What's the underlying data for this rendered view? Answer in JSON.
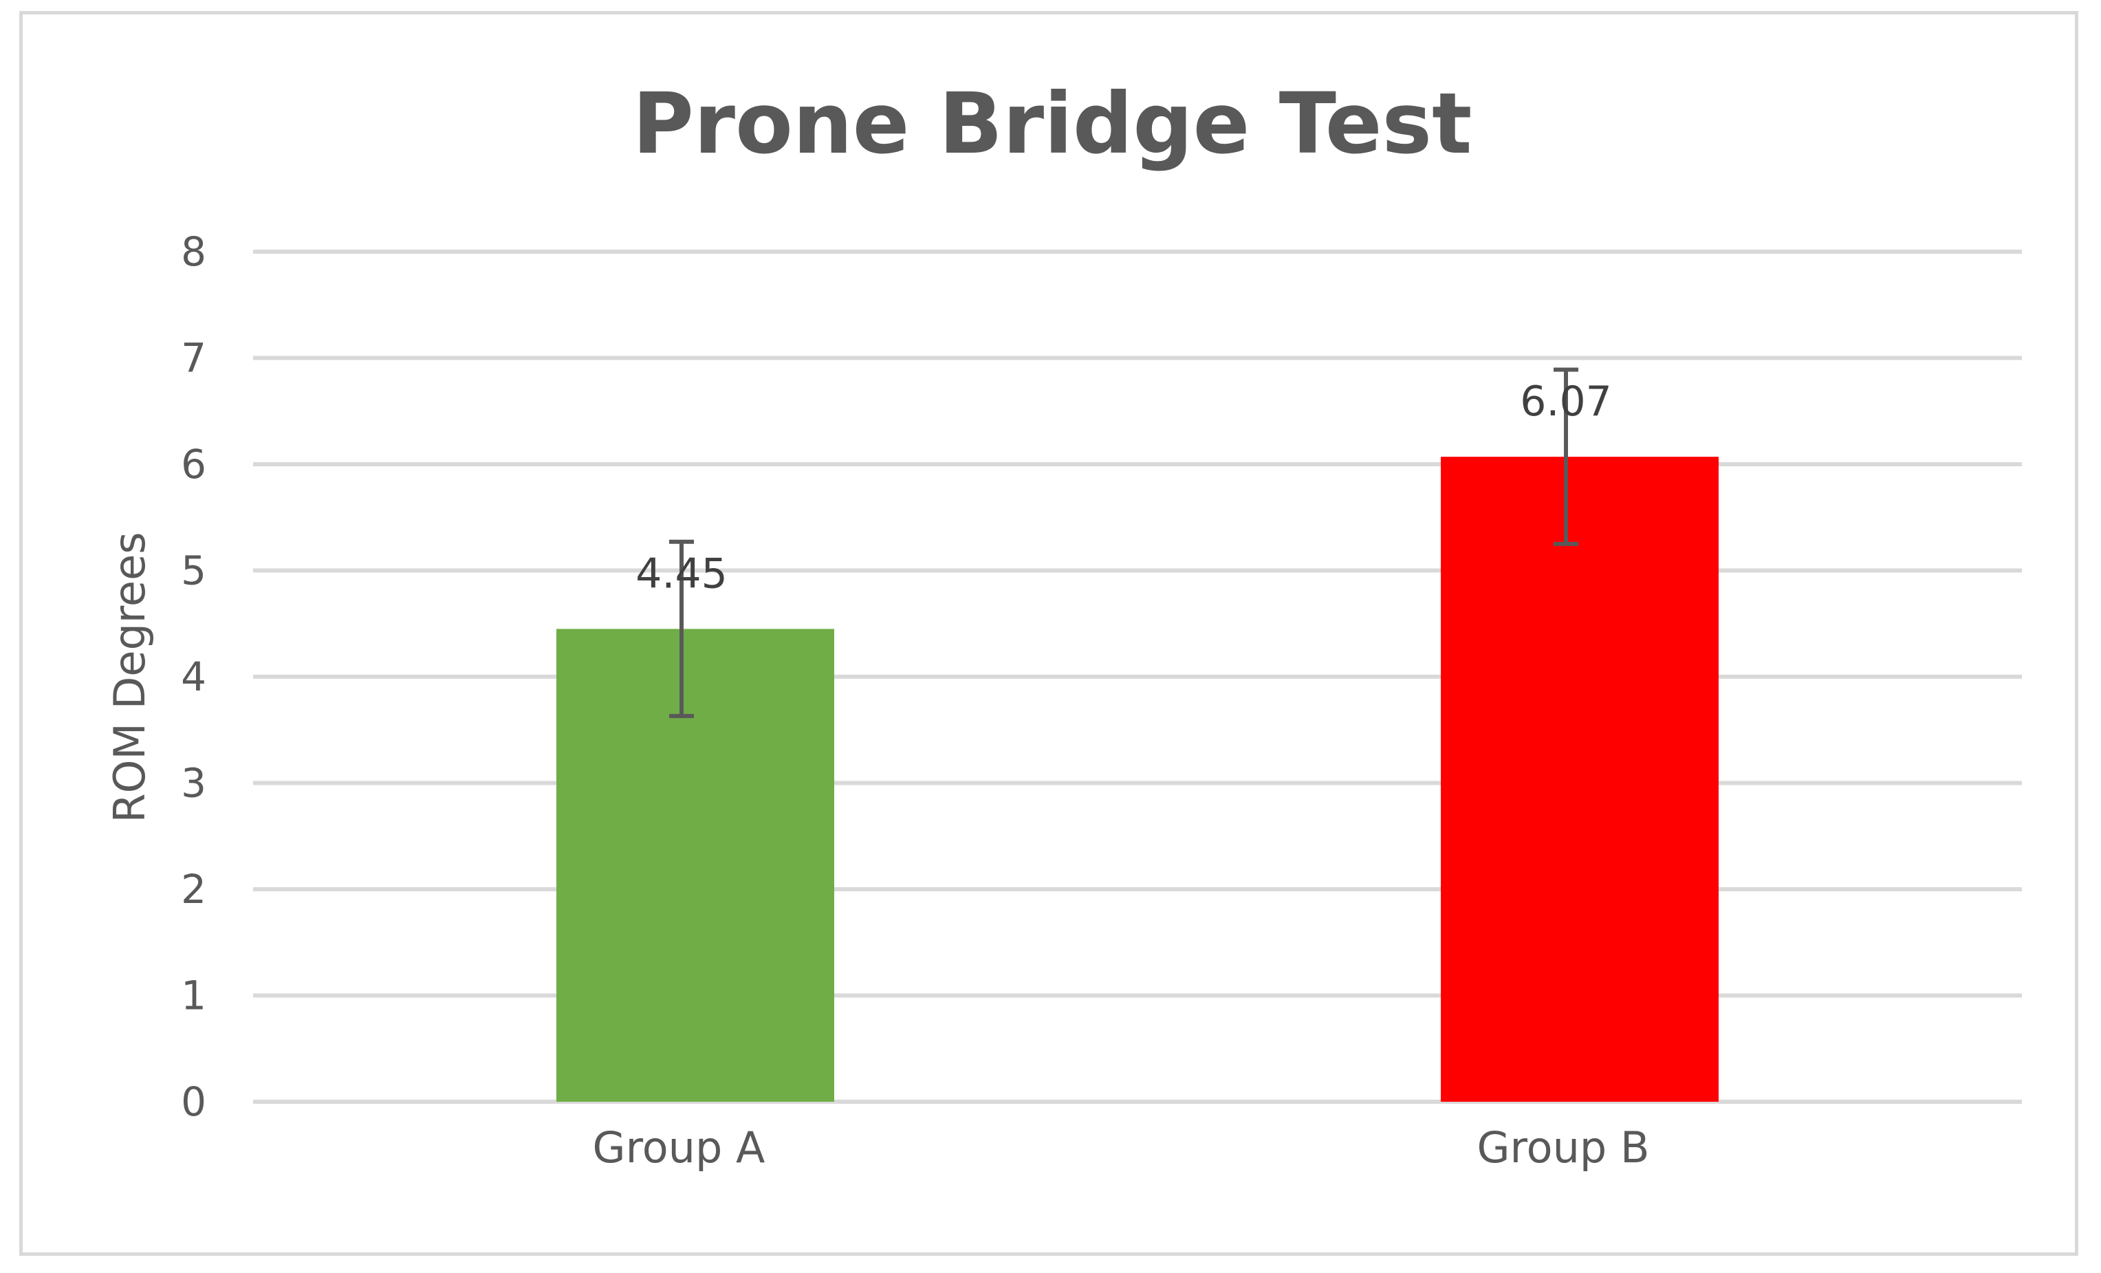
{
  "chart_data": {
    "type": "bar",
    "title": "Prone Bridge Test",
    "xlabel": "",
    "ylabel": "ROM Degrees",
    "ylim": [
      0,
      8
    ],
    "yticks": [
      "0",
      "1",
      "2",
      "3",
      "4",
      "5",
      "6",
      "7",
      "8"
    ],
    "grid": true,
    "legend": "none",
    "categories": [
      "Group A",
      "Group B"
    ],
    "values": [
      4.45,
      6.07
    ],
    "data_labels": [
      "4.45",
      "6.07"
    ],
    "error": [
      0.82,
      0.82
    ],
    "colors": [
      "#70ad47",
      "#ff0000"
    ],
    "gridline_color": "#d9d9d9",
    "text_color": "#595959",
    "errorbar_color": "#595959"
  }
}
